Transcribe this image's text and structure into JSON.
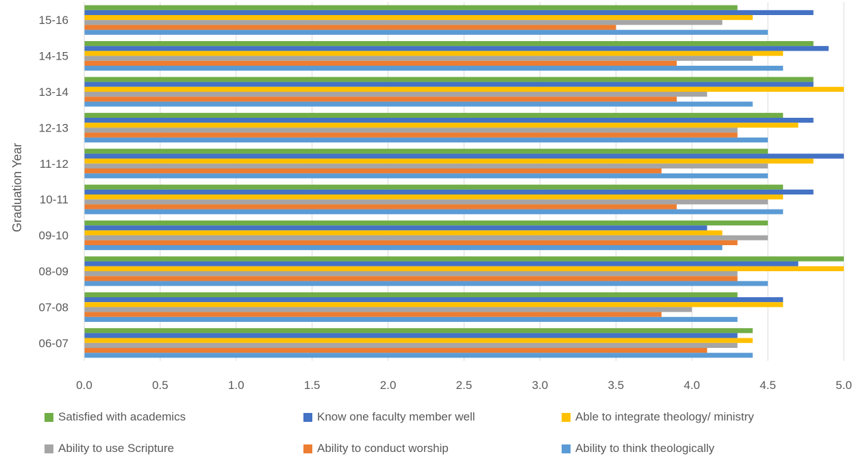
{
  "chart_data": {
    "type": "bar",
    "orientation": "horizontal",
    "title": "",
    "xlabel": "",
    "ylabel": "Graduation Year",
    "xlim": [
      0,
      5
    ],
    "x_ticks": [
      "0.0",
      "0.5",
      "1.0",
      "1.5",
      "2.0",
      "2.5",
      "3.0",
      "3.5",
      "4.0",
      "4.5",
      "5.0"
    ],
    "grid": "vertical",
    "legend_position": "bottom",
    "categories": [
      "06-07",
      "07-08",
      "08-09",
      "09-10",
      "10-11",
      "11-12",
      "12-13",
      "13-14",
      "14-15",
      "15-16"
    ],
    "series": [
      {
        "name": "Satisfied with academics",
        "color": "#70AD47",
        "values": [
          4.4,
          4.3,
          5.0,
          4.5,
          4.6,
          4.5,
          4.6,
          4.8,
          4.8,
          4.3
        ]
      },
      {
        "name": "Know one faculty member well",
        "color": "#4472C4",
        "values": [
          4.3,
          4.6,
          4.7,
          4.1,
          4.8,
          5.0,
          4.8,
          4.8,
          4.9,
          4.8
        ]
      },
      {
        "name": "Able to integrate theology/ ministry",
        "color": "#FFC000",
        "values": [
          4.4,
          4.6,
          5.0,
          4.2,
          4.6,
          4.8,
          4.7,
          5.0,
          4.6,
          4.4
        ]
      },
      {
        "name": "Ability to use Scripture",
        "color": "#A5A5A5",
        "values": [
          4.3,
          4.0,
          4.3,
          4.5,
          4.5,
          4.5,
          4.3,
          4.1,
          4.4,
          4.2
        ]
      },
      {
        "name": "Ability to conduct worship",
        "color": "#ED7D31",
        "values": [
          4.1,
          3.8,
          4.3,
          4.3,
          3.9,
          3.8,
          4.3,
          3.9,
          3.9,
          3.5
        ]
      },
      {
        "name": "Ability to think theologically",
        "color": "#5B9BD5",
        "values": [
          4.4,
          4.3,
          4.5,
          4.2,
          4.6,
          4.5,
          4.5,
          4.4,
          4.6,
          4.5
        ]
      }
    ]
  }
}
